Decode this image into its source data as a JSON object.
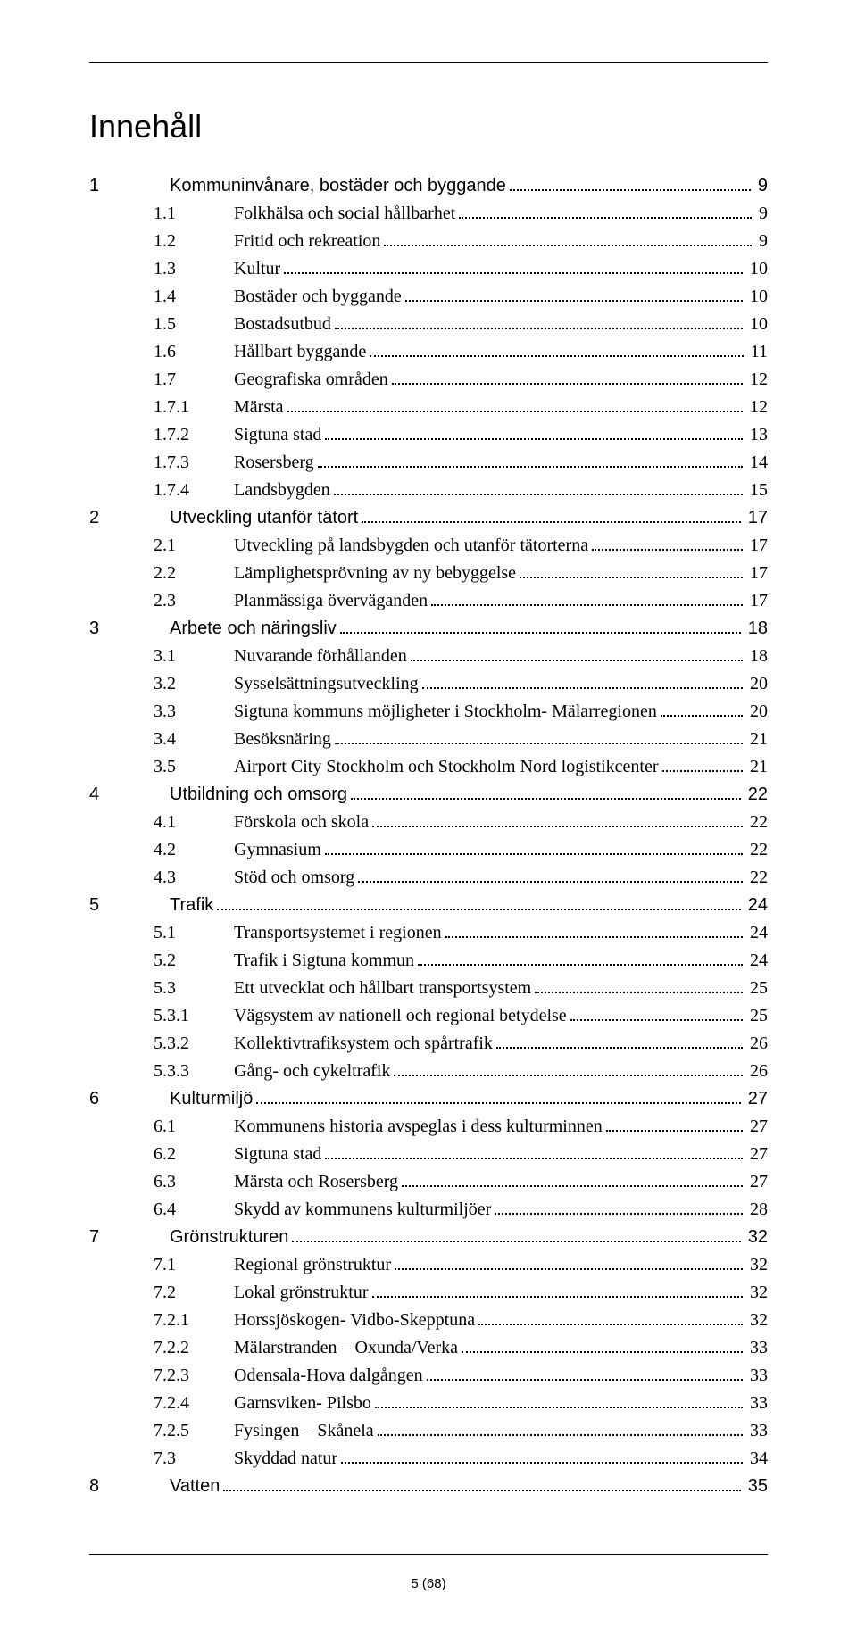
{
  "title": "Innehåll",
  "footer": "5 (68)",
  "items": [
    {
      "level": 1,
      "num": "1",
      "label": "Kommuninvånare, bostäder och byggande",
      "page": "9"
    },
    {
      "level": 2,
      "num": "1.1",
      "label": "Folkhälsa och social hållbarhet",
      "page": "9"
    },
    {
      "level": 2,
      "num": "1.2",
      "label": "Fritid och rekreation",
      "page": "9"
    },
    {
      "level": 2,
      "num": "1.3",
      "label": "Kultur",
      "page": "10"
    },
    {
      "level": 2,
      "num": "1.4",
      "label": "Bostäder och byggande",
      "page": "10"
    },
    {
      "level": 2,
      "num": "1.5",
      "label": "Bostadsutbud",
      "page": "10"
    },
    {
      "level": 2,
      "num": "1.6",
      "label": "Hållbart byggande",
      "page": "11"
    },
    {
      "level": 2,
      "num": "1.7",
      "label": "Geografiska områden",
      "page": "12"
    },
    {
      "level": 3,
      "num": "1.7.1",
      "label": "Märsta",
      "page": "12"
    },
    {
      "level": 3,
      "num": "1.7.2",
      "label": "Sigtuna stad",
      "page": "13"
    },
    {
      "level": 3,
      "num": "1.7.3",
      "label": "Rosersberg",
      "page": "14"
    },
    {
      "level": 3,
      "num": "1.7.4",
      "label": "Landsbygden",
      "page": "15"
    },
    {
      "level": 1,
      "num": "2",
      "label": "Utveckling utanför tätort",
      "page": "17"
    },
    {
      "level": 2,
      "num": "2.1",
      "label": "Utveckling på landsbygden och utanför tätorterna",
      "page": "17"
    },
    {
      "level": 2,
      "num": "2.2",
      "label": "Lämplighetsprövning av ny bebyggelse",
      "page": "17"
    },
    {
      "level": 2,
      "num": "2.3",
      "label": "Planmässiga överväganden",
      "page": "17"
    },
    {
      "level": 1,
      "num": "3",
      "label": "Arbete och näringsliv",
      "page": "18"
    },
    {
      "level": 2,
      "num": "3.1",
      "label": "Nuvarande förhållanden",
      "page": "18"
    },
    {
      "level": 2,
      "num": "3.2",
      "label": "Sysselsättningsutveckling",
      "page": "20"
    },
    {
      "level": 2,
      "num": "3.3",
      "label": "Sigtuna kommuns möjligheter i Stockholm- Mälarregionen",
      "page": "20"
    },
    {
      "level": 2,
      "num": "3.4",
      "label": "Besöksnäring",
      "page": "21"
    },
    {
      "level": 2,
      "num": "3.5",
      "label": "Airport City Stockholm och Stockholm Nord logistikcenter",
      "page": "21"
    },
    {
      "level": 1,
      "num": "4",
      "label": "Utbildning och omsorg",
      "page": "22"
    },
    {
      "level": 2,
      "num": "4.1",
      "label": "Förskola och skola",
      "page": "22"
    },
    {
      "level": 2,
      "num": "4.2",
      "label": "Gymnasium",
      "page": "22"
    },
    {
      "level": 2,
      "num": "4.3",
      "label": "Stöd och omsorg",
      "page": "22"
    },
    {
      "level": 1,
      "num": "5",
      "label": "Trafik",
      "page": "24"
    },
    {
      "level": 2,
      "num": "5.1",
      "label": "Transportsystemet i regionen",
      "page": "24"
    },
    {
      "level": 2,
      "num": "5.2",
      "label": "Trafik i Sigtuna kommun",
      "page": "24"
    },
    {
      "level": 2,
      "num": "5.3",
      "label": "Ett utvecklat och hållbart transportsystem",
      "page": "25"
    },
    {
      "level": 3,
      "num": "5.3.1",
      "label": "Vägsystem av nationell och regional betydelse",
      "page": "25"
    },
    {
      "level": 3,
      "num": "5.3.2",
      "label": "Kollektivtrafiksystem och spårtrafik",
      "page": "26"
    },
    {
      "level": 3,
      "num": "5.3.3",
      "label": "Gång- och cykeltrafik",
      "page": "26"
    },
    {
      "level": 1,
      "num": "6",
      "label": "Kulturmiljö",
      "page": "27"
    },
    {
      "level": 2,
      "num": "6.1",
      "label": "Kommunens historia avspeglas i dess kulturminnen",
      "page": "27"
    },
    {
      "level": 2,
      "num": "6.2",
      "label": "Sigtuna stad",
      "page": "27"
    },
    {
      "level": 2,
      "num": "6.3",
      "label": "Märsta och Rosersberg",
      "page": "27"
    },
    {
      "level": 2,
      "num": "6.4",
      "label": "Skydd av kommunens kulturmiljöer",
      "page": "28"
    },
    {
      "level": 1,
      "num": "7",
      "label": "Grönstrukturen",
      "page": "32"
    },
    {
      "level": 2,
      "num": "7.1",
      "label": "Regional grönstruktur",
      "page": "32"
    },
    {
      "level": 2,
      "num": "7.2",
      "label": "Lokal grönstruktur",
      "page": "32"
    },
    {
      "level": 3,
      "num": "7.2.1",
      "label": "Horssjöskogen- Vidbo-Skepptuna",
      "page": "32"
    },
    {
      "level": 3,
      "num": "7.2.2",
      "label": "Mälarstranden – Oxunda/Verka",
      "page": "33"
    },
    {
      "level": 3,
      "num": "7.2.3",
      "label": "Odensala-Hova dalgången",
      "page": "33"
    },
    {
      "level": 3,
      "num": "7.2.4",
      "label": "Garnsviken- Pilsbo",
      "page": "33"
    },
    {
      "level": 3,
      "num": "7.2.5",
      "label": "Fysingen – Skånela",
      "page": "33"
    },
    {
      "level": 2,
      "num": "7.3",
      "label": "Skyddad natur",
      "page": "34"
    },
    {
      "level": 1,
      "num": "8",
      "label": "Vatten",
      "page": "35"
    }
  ]
}
